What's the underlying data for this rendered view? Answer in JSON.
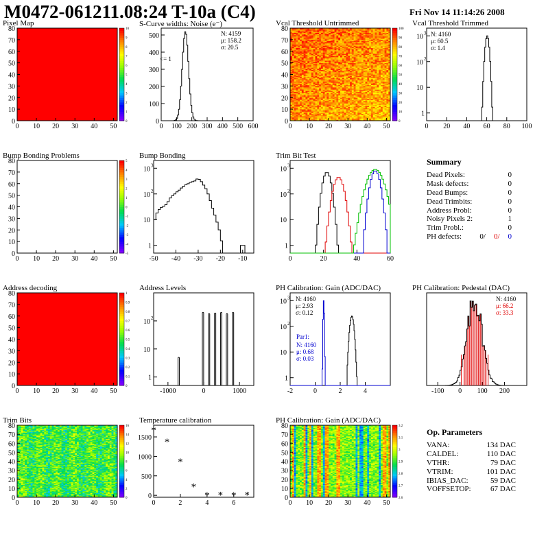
{
  "header": {
    "title": "M0472-061211.08:24 T-10a (C4)",
    "datetime": "Fri Nov 14 11:14:26 2008"
  },
  "colors": {
    "map_fill": "#ff0000",
    "black": "#000000",
    "red": "#e00000",
    "blue": "#0000d0",
    "green": "#00c000"
  },
  "palette_names": [
    "rainbow"
  ],
  "summary": {
    "title": "Summary",
    "rows": [
      {
        "label": "Dead Pixels:",
        "value": "0"
      },
      {
        "label": "Mask defects:",
        "value": "0"
      },
      {
        "label": "Dead Bumps:",
        "value": "0"
      },
      {
        "label": "Dead Trimbits:",
        "value": "0"
      },
      {
        "label": "Address Probl:",
        "value": "0"
      },
      {
        "label": "Noisy Pixels 2:",
        "value": "1"
      },
      {
        "label": "Trim Probl.:",
        "value": "0"
      }
    ],
    "ph_label": "PH defects:",
    "ph_values": [
      "0/",
      "0/",
      "0"
    ]
  },
  "op_params": {
    "title": "Op. Parameters",
    "rows": [
      {
        "label": "VANA:",
        "value": "134 DAC"
      },
      {
        "label": "CALDEL:",
        "value": "110 DAC"
      },
      {
        "label": "VTHR:",
        "value": "79 DAC"
      },
      {
        "label": "VTRIM:",
        "value": "101 DAC"
      },
      {
        "label": "IBIAS_DAC:",
        "value": "59 DAC"
      },
      {
        "label": "VOFFSETOP:",
        "value": "67 DAC"
      }
    ]
  },
  "chart_data": [
    {
      "id": "pixel_map",
      "type": "heatmap",
      "title": "Pixel Map",
      "xlim": [
        0,
        52
      ],
      "ylim": [
        0,
        80
      ],
      "xticks": [
        0,
        10,
        20,
        30,
        40,
        50
      ],
      "yticks": [
        0,
        10,
        20,
        30,
        40,
        50,
        60,
        70,
        80
      ],
      "fill": "uniform",
      "zrange": [
        0,
        10
      ],
      "zticks": [
        "0",
        "1",
        "2",
        "3",
        "4",
        "5",
        "6",
        "7",
        "8",
        "9",
        "10"
      ]
    },
    {
      "id": "scurve",
      "type": "line",
      "title": "S-Curve widths: Noise (e⁻)",
      "xlim": [
        0,
        600
      ],
      "ylim": [
        0,
        540
      ],
      "log": false,
      "xticks": [
        0,
        100,
        200,
        300,
        400,
        500,
        600
      ],
      "yticks": [
        0,
        100,
        200,
        300,
        400,
        500
      ],
      "stats": [
        "N: 4159",
        "μ: 158.2",
        "σ: 20.5"
      ],
      "annotation": "<= 1",
      "series": [
        {
          "mean": 158.2,
          "sigma": 20.5,
          "peak": 520,
          "color": "black"
        }
      ]
    },
    {
      "id": "vcal_untrimmed",
      "type": "heatmap",
      "title": "Vcal Threshold Untrimmed",
      "xlim": [
        0,
        52
      ],
      "ylim": [
        0,
        80
      ],
      "xticks": [
        0,
        10,
        20,
        30,
        40,
        50
      ],
      "yticks": [
        0,
        10,
        20,
        30,
        40,
        50,
        60,
        70,
        80
      ],
      "fill": "noise-hot",
      "zrange": [
        0,
        110
      ],
      "zticks": [
        "0",
        "10",
        "20",
        "30",
        "40",
        "50",
        "60",
        "70",
        "80",
        "90",
        "100"
      ]
    },
    {
      "id": "vcal_trimmed",
      "type": "line",
      "title": "Vcal Threshold Trimmed",
      "xlim": [
        0,
        100
      ],
      "ylim": [
        0.5,
        2000
      ],
      "log": true,
      "xticks": [
        0,
        20,
        40,
        60,
        80,
        100
      ],
      "yticks": [
        1,
        10,
        100,
        1000
      ],
      "stats": [
        "N: 4160",
        "μ: 60.5",
        "σ:  1.4"
      ],
      "series": [
        {
          "mean": 60.5,
          "sigma": 1.4,
          "peak": 1000,
          "color": "black"
        }
      ]
    },
    {
      "id": "bump_problems",
      "type": "heatmap",
      "title": "Bump Bonding Problems",
      "xlim": [
        0,
        52
      ],
      "ylim": [
        0,
        80
      ],
      "xticks": [
        0,
        10,
        20,
        30,
        40,
        50
      ],
      "yticks": [
        0,
        10,
        20,
        30,
        40,
        50,
        60,
        70,
        80
      ],
      "fill": "empty",
      "zrange": [
        -5,
        5
      ],
      "zticks": [
        "-5",
        "-4",
        "-3",
        "-2",
        "-1",
        "0",
        "1",
        "2",
        "3",
        "4",
        "5"
      ]
    },
    {
      "id": "bump_bonding",
      "type": "line",
      "title": "Bump Bonding",
      "xlim": [
        -50,
        -5
      ],
      "ylim": [
        0.5,
        2000
      ],
      "log": true,
      "xticks": [
        -50,
        -40,
        -30,
        -20,
        -10
      ],
      "yticks": [
        1,
        10,
        100,
        1000
      ],
      "series": [
        {
          "name": "",
          "color": "black",
          "x": [
            -50,
            -49,
            -48,
            -47,
            -46,
            -45,
            -44,
            -43,
            -42,
            -41,
            -40,
            -39,
            -38,
            -37,
            -36,
            -35,
            -34,
            -33,
            -32,
            -31,
            -30,
            -29,
            -28,
            -27,
            -26,
            -25,
            -24,
            -23,
            -22,
            -21,
            -20,
            -19,
            -18,
            -17,
            -16,
            -15,
            -14,
            -13,
            -12,
            -11,
            -10,
            -9
          ],
          "y": [
            10,
            18,
            25,
            30,
            33,
            38,
            50,
            70,
            85,
            100,
            120,
            140,
            170,
            200,
            230,
            250,
            280,
            300,
            320,
            380,
            370,
            300,
            220,
            160,
            100,
            55,
            28,
            15,
            8,
            4,
            1.5,
            0.4,
            0.4,
            0.4,
            0.4,
            0.4,
            0.4,
            0.4,
            0.4,
            1,
            1,
            0.4
          ]
        }
      ]
    },
    {
      "id": "trim_bit_test",
      "type": "line",
      "title": "Trim Bit Test",
      "xlim": [
        0,
        60
      ],
      "ylim": [
        0.5,
        2000
      ],
      "log": true,
      "xticks": [
        0,
        20,
        40,
        60
      ],
      "yticks": [
        1,
        10,
        100,
        1000
      ],
      "series": [
        {
          "mean": 22,
          "sigma": 1.8,
          "peak": 700,
          "color": "black"
        },
        {
          "mean": 29,
          "sigma": 2.2,
          "peak": 450,
          "color": "red"
        },
        {
          "mean": 51,
          "sigma": 2.0,
          "peak": 800,
          "color": "blue"
        },
        {
          "mean": 51,
          "sigma": 3.4,
          "peak": 900,
          "color": "green"
        }
      ]
    },
    {
      "id": "address_decoding",
      "type": "heatmap",
      "title": "Address decoding",
      "xlim": [
        0,
        52
      ],
      "ylim": [
        0,
        80
      ],
      "xticks": [
        0,
        10,
        20,
        30,
        40,
        50
      ],
      "yticks": [
        0,
        10,
        20,
        30,
        40,
        50,
        60,
        70,
        80
      ],
      "fill": "uniform",
      "zrange": [
        0,
        1
      ],
      "zticks": [
        "0",
        "0.1",
        "0.2",
        "0.3",
        "0.4",
        "0.5",
        "0.6",
        "0.7",
        "0.8",
        "0.9",
        "1"
      ]
    },
    {
      "id": "address_levels",
      "type": "line",
      "title": "Address Levels",
      "xlim": [
        -1400,
        1400
      ],
      "ylim": [
        0.5,
        1000
      ],
      "log": true,
      "xticks": [
        -1000,
        0,
        1000
      ],
      "yticks": [
        1,
        10,
        100
      ],
      "peaks": [
        {
          "x": -700,
          "h": 5
        },
        {
          "x": -20,
          "h": 200
        },
        {
          "x": 150,
          "h": 180
        },
        {
          "x": 320,
          "h": 190
        },
        {
          "x": 490,
          "h": 200
        },
        {
          "x": 650,
          "h": 180
        },
        {
          "x": 820,
          "h": 200
        }
      ]
    },
    {
      "id": "ph_gain",
      "type": "line",
      "title": "PH Calibration: Gain (ADC/DAC)",
      "xlim": [
        -2,
        6
      ],
      "ylim": [
        0.5,
        2000
      ],
      "log": true,
      "xticks": [
        -2,
        0,
        2,
        4
      ],
      "yticks": [
        1,
        10,
        100,
        1000
      ],
      "stats": [
        "N: 4160",
        "μ: 2.93",
        "σ: 0.12"
      ],
      "stats2_title": "Par1:",
      "stats2": [
        "N: 4160",
        "μ: 0.68",
        "σ: 0.03"
      ],
      "series": [
        {
          "mean": 2.93,
          "sigma": 0.12,
          "peak": 250,
          "color": "black"
        },
        {
          "mean": 0.68,
          "sigma": 0.03,
          "peak": 1000,
          "color": "blue"
        }
      ]
    },
    {
      "id": "ph_pedestal",
      "type": "line",
      "title": "PH Calibration: Pedestal (DAC)",
      "xlim": [
        -150,
        300
      ],
      "ylim": [
        0,
        105
      ],
      "log": false,
      "xticks": [
        -100,
        0,
        100,
        200
      ],
      "yticks": [],
      "stats": [
        "N: 4160",
        "μ: 66.2",
        "σ: 33.3"
      ],
      "series": [
        {
          "mean": 66.2,
          "sigma": 33.3,
          "peak": 100,
          "color": "black"
        }
      ]
    },
    {
      "id": "trim_bits",
      "type": "heatmap",
      "title": "Trim Bits",
      "xlim": [
        0,
        52
      ],
      "ylim": [
        0,
        80
      ],
      "xticks": [
        0,
        10,
        20,
        30,
        40,
        50
      ],
      "yticks": [
        0,
        10,
        20,
        30,
        40,
        50,
        60,
        70,
        80
      ],
      "fill": "noise-green",
      "zrange": [
        0,
        16
      ],
      "zticks": [
        "0",
        "2",
        "4",
        "6",
        "8",
        "10",
        "12",
        "14",
        "16"
      ]
    },
    {
      "id": "temp_calibration",
      "type": "scatter",
      "title": "Temperature calibration",
      "xlim": [
        0,
        7.5
      ],
      "ylim": [
        -50,
        1800
      ],
      "log": false,
      "xticks": [
        0,
        2,
        4,
        6
      ],
      "yticks": [
        0,
        500,
        1000,
        1500
      ],
      "x": [
        0,
        1,
        2,
        3,
        4,
        5,
        6,
        7
      ],
      "y": [
        1680,
        1380,
        870,
        220,
        0,
        10,
        0,
        10
      ]
    },
    {
      "id": "ph_gain_map",
      "type": "heatmap",
      "title": "PH Calibration: Gain (ADC/DAC)",
      "xlim": [
        0,
        52
      ],
      "ylim": [
        0,
        80
      ],
      "xticks": [
        0,
        10,
        20,
        30,
        40,
        50
      ],
      "yticks": [
        0,
        10,
        20,
        30,
        40,
        50,
        60,
        70,
        80
      ],
      "fill": "noise-columns",
      "zrange": [
        2.6,
        3.2
      ],
      "zticks": [
        "2.6",
        "2.7",
        "2.8",
        "2.9",
        "3",
        "3.1",
        "3.2"
      ]
    }
  ]
}
